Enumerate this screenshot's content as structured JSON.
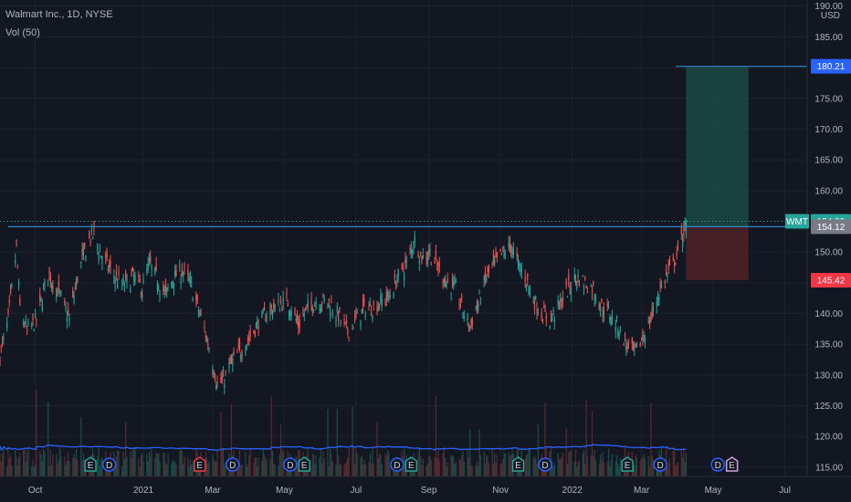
{
  "header": {
    "symbol_line": "Walmart Inc., 1D, NYSE",
    "volume_line": "Vol (50)"
  },
  "chart_data": {
    "type": "candlestick",
    "symbol": "WMT",
    "currency": "USD",
    "y_range": [
      113.5,
      191
    ],
    "y_ticks": [
      115,
      120,
      125,
      130,
      135,
      140,
      145,
      150,
      155,
      160,
      165,
      170,
      175,
      180,
      185,
      190
    ],
    "y_tick_labels": [
      "115.00",
      "120.00",
      "125.00",
      "130.00",
      "135.00",
      "140.00",
      "145.00",
      "150.00",
      "155.00",
      "160.00",
      "165.00",
      "170.00",
      "175.00",
      "180.00",
      "185.00",
      "190.00"
    ],
    "x_range": [
      "2020-09-01",
      "2022-07-20"
    ],
    "x_ticks": [
      {
        "date": "2020-10-01",
        "label": "Oct"
      },
      {
        "date": "2021-01-01",
        "label": "2021"
      },
      {
        "date": "2021-03-01",
        "label": "Mar"
      },
      {
        "date": "2021-05-01",
        "label": "May"
      },
      {
        "date": "2021-07-01",
        "label": "Jul"
      },
      {
        "date": "2021-09-01",
        "label": "Sep"
      },
      {
        "date": "2021-11-01",
        "label": "Nov"
      },
      {
        "date": "2022-01-01",
        "label": "2022"
      },
      {
        "date": "2022-03-01",
        "label": "Mar"
      },
      {
        "date": "2022-05-01",
        "label": "May"
      },
      {
        "date": "2022-07-01",
        "label": "Jul"
      }
    ],
    "price_path": [
      [
        "2020-09-01",
        133
      ],
      [
        "2020-09-08",
        139
      ],
      [
        "2020-09-15",
        150.5
      ],
      [
        "2020-09-18",
        141
      ],
      [
        "2020-09-24",
        137
      ],
      [
        "2020-10-02",
        139
      ],
      [
        "2020-10-12",
        146.5
      ],
      [
        "2020-10-22",
        143
      ],
      [
        "2020-10-30",
        139
      ],
      [
        "2020-11-06",
        146
      ],
      [
        "2020-11-12",
        150
      ],
      [
        "2020-11-16",
        152
      ],
      [
        "2020-11-20",
        153
      ],
      [
        "2020-11-25",
        150
      ],
      [
        "2020-12-04",
        147
      ],
      [
        "2020-12-14",
        144.5
      ],
      [
        "2020-12-24",
        146
      ],
      [
        "2020-12-31",
        144
      ],
      [
        "2021-01-06",
        148
      ],
      [
        "2021-01-12",
        146
      ],
      [
        "2021-01-20",
        143
      ],
      [
        "2021-01-27",
        146
      ],
      [
        "2021-02-03",
        147
      ],
      [
        "2021-02-10",
        145
      ],
      [
        "2021-02-18",
        140
      ],
      [
        "2021-02-24",
        136
      ],
      [
        "2021-03-01",
        132
      ],
      [
        "2021-03-05",
        128.5
      ],
      [
        "2021-03-10",
        129
      ],
      [
        "2021-03-17",
        132
      ],
      [
        "2021-03-25",
        134
      ],
      [
        "2021-04-01",
        136
      ],
      [
        "2021-04-09",
        138.5
      ],
      [
        "2021-04-16",
        140
      ],
      [
        "2021-04-23",
        141
      ],
      [
        "2021-05-03",
        142
      ],
      [
        "2021-05-07",
        141
      ],
      [
        "2021-05-13",
        138
      ],
      [
        "2021-05-21",
        141
      ],
      [
        "2021-05-28",
        142
      ],
      [
        "2021-06-07",
        142
      ],
      [
        "2021-06-15",
        140
      ],
      [
        "2021-06-24",
        137
      ],
      [
        "2021-07-01",
        139
      ],
      [
        "2021-07-09",
        141
      ],
      [
        "2021-07-16",
        141
      ],
      [
        "2021-07-23",
        142
      ],
      [
        "2021-07-30",
        143
      ],
      [
        "2021-08-06",
        146
      ],
      [
        "2021-08-13",
        148
      ],
      [
        "2021-08-18",
        151
      ],
      [
        "2021-08-20",
        152
      ],
      [
        "2021-08-26",
        149
      ],
      [
        "2021-09-02",
        150
      ],
      [
        "2021-09-10",
        147
      ],
      [
        "2021-09-17",
        145
      ],
      [
        "2021-09-24",
        144
      ],
      [
        "2021-10-01",
        140
      ],
      [
        "2021-10-06",
        138
      ],
      [
        "2021-10-12",
        141
      ],
      [
        "2021-10-20",
        146
      ],
      [
        "2021-10-27",
        148
      ],
      [
        "2021-11-04",
        150
      ],
      [
        "2021-11-10",
        151
      ],
      [
        "2021-11-16",
        148
      ],
      [
        "2021-11-22",
        146
      ],
      [
        "2021-11-30",
        142
      ],
      [
        "2021-12-06",
        140
      ],
      [
        "2021-12-13",
        139
      ],
      [
        "2021-12-20",
        141
      ],
      [
        "2021-12-30",
        144.5
      ],
      [
        "2022-01-05",
        146
      ],
      [
        "2022-01-12",
        145
      ],
      [
        "2022-01-19",
        144
      ],
      [
        "2022-01-26",
        141
      ],
      [
        "2022-02-02",
        140
      ],
      [
        "2022-02-09",
        138
      ],
      [
        "2022-02-16",
        135
      ],
      [
        "2022-02-23",
        133.5
      ],
      [
        "2022-03-02",
        136
      ],
      [
        "2022-03-09",
        139
      ],
      [
        "2022-03-16",
        143.5
      ],
      [
        "2022-03-22",
        146
      ],
      [
        "2022-03-28",
        148
      ],
      [
        "2022-04-01",
        150
      ],
      [
        "2022-04-06",
        153.5
      ],
      [
        "2022-04-08",
        154.99
      ]
    ],
    "volume_avg_line": "Vol (50) moving average",
    "horizontal_lines": [
      {
        "from": "2020-09-08",
        "to": "2022-07-20",
        "price": 154.12,
        "role": "resistance"
      },
      {
        "from": "2022-03-30",
        "to": "2022-07-20",
        "price": 180.21,
        "role": "target"
      }
    ],
    "position": {
      "type": "long",
      "from": "2022-04-08",
      "to": "2022-05-31",
      "entry": 154.12,
      "target": 180.21,
      "stop": 145.42
    },
    "price_labels": [
      {
        "text": "180.21",
        "price": 180.21,
        "color": "#2962ff"
      },
      {
        "text": "154.99",
        "price": 154.99,
        "color": "#26a69a",
        "tag": "WMT"
      },
      {
        "text": "154.12",
        "price": 154.12,
        "color": "#787b86"
      },
      {
        "text": "145.42",
        "price": 145.42,
        "color": "#f23645"
      }
    ],
    "events": [
      {
        "date": "2020-11-17",
        "label": "E",
        "kind": "earnings"
      },
      {
        "date": "2020-12-03",
        "label": "D",
        "kind": "dividend"
      },
      {
        "date": "2021-02-18",
        "label": "E",
        "kind": "earnings-down"
      },
      {
        "date": "2021-03-18",
        "label": "D",
        "kind": "dividend"
      },
      {
        "date": "2021-05-06",
        "label": "D",
        "kind": "dividend"
      },
      {
        "date": "2021-05-18",
        "label": "E",
        "kind": "earnings"
      },
      {
        "date": "2021-08-17",
        "label": "E",
        "kind": "earnings"
      },
      {
        "date": "2021-08-05",
        "label": "D",
        "kind": "dividend"
      },
      {
        "date": "2021-11-16",
        "label": "E",
        "kind": "earnings"
      },
      {
        "date": "2021-12-09",
        "label": "D",
        "kind": "dividend"
      },
      {
        "date": "2022-02-17",
        "label": "E",
        "kind": "earnings"
      },
      {
        "date": "2022-03-17",
        "label": "D",
        "kind": "dividend"
      },
      {
        "date": "2022-05-05",
        "label": "D",
        "kind": "dividend-future"
      },
      {
        "date": "2022-05-17",
        "label": "E",
        "kind": "earnings-future"
      }
    ],
    "colors": {
      "background": "#131722",
      "up": "#26a69a",
      "down": "#ef5350",
      "grid": "#1e222d",
      "line": "#2962ff",
      "profit_zone": "#1b4a44",
      "loss_zone": "#4b2127"
    }
  }
}
